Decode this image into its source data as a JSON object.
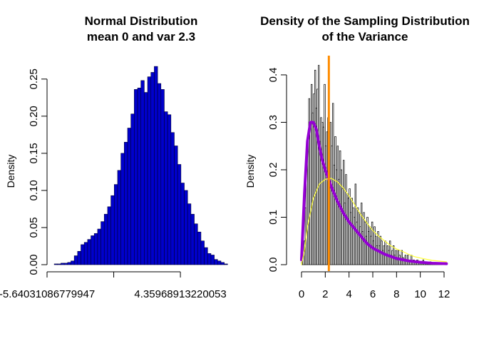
{
  "chart_data": [
    {
      "type": "bar",
      "title_line1": "Normal Distribution",
      "title_line2": "mean 0 and var 2.3",
      "xlabel": "",
      "ylabel": "Density",
      "x_tick_labels": [
        "-5.64031086779947",
        "4.35968913220053"
      ],
      "xlim": [
        -5.64,
        6.6
      ],
      "ylim": [
        0,
        0.27
      ],
      "y_ticks": [
        0.0,
        0.05,
        0.1,
        0.15,
        0.2,
        0.25
      ],
      "y_tick_labels": [
        "0.00",
        "0.05",
        "0.10",
        "0.15",
        "0.20",
        "0.25"
      ],
      "bar_fill": "#0000cc",
      "bar_stroke": "#000033",
      "bin_width": 0.25,
      "bin_start": -5.1,
      "values": [
        0.001,
        0.001,
        0.002,
        0.002,
        0.003,
        0.005,
        0.012,
        0.018,
        0.027,
        0.03,
        0.034,
        0.039,
        0.042,
        0.048,
        0.058,
        0.068,
        0.078,
        0.093,
        0.108,
        0.127,
        0.15,
        0.165,
        0.184,
        0.203,
        0.236,
        0.238,
        0.248,
        0.232,
        0.253,
        0.259,
        0.267,
        0.244,
        0.236,
        0.206,
        0.202,
        0.178,
        0.16,
        0.135,
        0.11,
        0.1,
        0.082,
        0.068,
        0.055,
        0.044,
        0.032,
        0.023,
        0.015,
        0.013,
        0.007,
        0.005,
        0.003,
        0.001
      ]
    },
    {
      "type": "bar",
      "title_line1": "Density of the Sampling Distribution",
      "title_line2": "of the Variance",
      "xlabel": "",
      "ylabel": "Density",
      "xlim": [
        -0.3,
        12.3
      ],
      "ylim": [
        0,
        0.43
      ],
      "x_ticks": [
        0,
        2,
        4,
        6,
        8,
        10,
        12
      ],
      "x_tick_labels": [
        "0",
        "2",
        "4",
        "6",
        "8",
        "10",
        "12"
      ],
      "y_ticks": [
        0.0,
        0.1,
        0.2,
        0.3,
        0.4
      ],
      "y_tick_labels": [
        "0.0",
        "0.1",
        "0.2",
        "0.3",
        "0.4"
      ],
      "bar_fill": "#ffffff",
      "bar_stroke": "#000000",
      "bin_width": 0.1,
      "bin_start": 0.0,
      "values": [
        0.005,
        0.02,
        0.05,
        0.12,
        0.2,
        0.26,
        0.35,
        0.3,
        0.38,
        0.32,
        0.36,
        0.41,
        0.33,
        0.37,
        0.42,
        0.26,
        0.31,
        0.3,
        0.29,
        0.38,
        0.25,
        0.28,
        0.31,
        0.22,
        0.3,
        0.25,
        0.34,
        0.21,
        0.27,
        0.2,
        0.25,
        0.18,
        0.24,
        0.2,
        0.16,
        0.22,
        0.13,
        0.19,
        0.15,
        0.14,
        0.16,
        0.11,
        0.14,
        0.12,
        0.1,
        0.17,
        0.09,
        0.12,
        0.11,
        0.08,
        0.13,
        0.07,
        0.11,
        0.09,
        0.06,
        0.1,
        0.07,
        0.08,
        0.06,
        0.09,
        0.05,
        0.08,
        0.06,
        0.04,
        0.07,
        0.04,
        0.06,
        0.05,
        0.03,
        0.04,
        0.05,
        0.02,
        0.04,
        0.03,
        0.05,
        0.02,
        0.03,
        0.04,
        0.02,
        0.03,
        0.01,
        0.03,
        0.02,
        0.01,
        0.03,
        0.015,
        0.01,
        0.02,
        0.01,
        0.02,
        0.008,
        0.01,
        0.02,
        0.005,
        0.01,
        0.008,
        0.004,
        0.01,
        0.005,
        0.003,
        0.006,
        0.004,
        0.01,
        0.003,
        0.005,
        0.002,
        0.004,
        0.003,
        0.006,
        0.002,
        0.003,
        0.002,
        0.004,
        0.001,
        0.002,
        0.003,
        0.001,
        0.002,
        0.001,
        0.002
      ],
      "vline": {
        "x": 2.3,
        "color": "#ff8c00"
      },
      "series": [
        {
          "color": "#9400d3",
          "x": [
            0,
            0.25,
            0.5,
            0.75,
            1.0,
            1.25,
            1.5,
            1.75,
            2.0,
            2.5,
            3.0,
            3.5,
            4.0,
            4.5,
            5.0,
            5.5,
            6.0,
            7.0,
            8.0,
            9.0,
            10.0,
            11.0,
            12.2
          ],
          "y": [
            0.01,
            0.15,
            0.26,
            0.3,
            0.3,
            0.285,
            0.25,
            0.22,
            0.2,
            0.165,
            0.135,
            0.11,
            0.09,
            0.075,
            0.06,
            0.045,
            0.035,
            0.022,
            0.013,
            0.008,
            0.005,
            0.003,
            0.002
          ]
        },
        {
          "color": "#ffff33",
          "x": [
            0,
            0.25,
            0.5,
            1.0,
            1.5,
            2.0,
            2.5,
            3.0,
            3.5,
            4.0,
            4.5,
            5.0,
            5.5,
            6.0,
            6.5,
            7.0,
            7.5,
            8.0,
            8.5,
            9.0,
            9.5,
            10.0,
            11.0,
            12.2
          ],
          "y": [
            0.0,
            0.03,
            0.08,
            0.14,
            0.17,
            0.18,
            0.182,
            0.175,
            0.162,
            0.145,
            0.125,
            0.105,
            0.088,
            0.072,
            0.06,
            0.05,
            0.04,
            0.033,
            0.028,
            0.022,
            0.017,
            0.014,
            0.009,
            0.006
          ]
        }
      ]
    }
  ]
}
